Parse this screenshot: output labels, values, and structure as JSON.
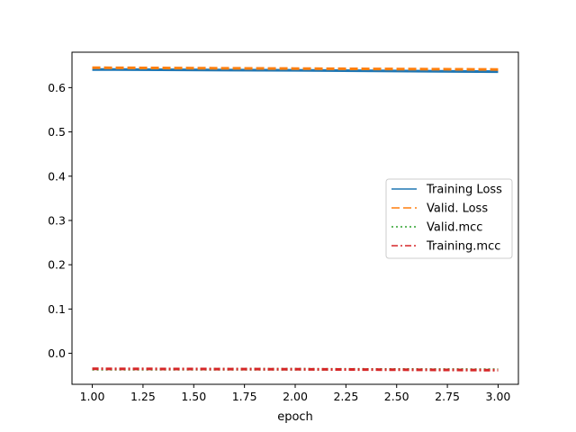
{
  "chart_data": {
    "type": "line",
    "title": "",
    "xlabel": "epoch",
    "ylabel": "",
    "xlim": [
      0.9,
      3.1
    ],
    "ylim": [
      -0.07,
      0.68
    ],
    "x_ticks": [
      "1.00",
      "1.25",
      "1.50",
      "1.75",
      "2.00",
      "2.25",
      "2.50",
      "2.75",
      "3.00"
    ],
    "x_tick_values": [
      1.0,
      1.25,
      1.5,
      1.75,
      2.0,
      2.25,
      2.5,
      2.75,
      3.0
    ],
    "y_ticks": [
      "0.0",
      "0.1",
      "0.2",
      "0.3",
      "0.4",
      "0.5",
      "0.6"
    ],
    "y_tick_values": [
      0.0,
      0.1,
      0.2,
      0.3,
      0.4,
      0.5,
      0.6
    ],
    "grid": false,
    "legend_position": "center-right",
    "x": [
      1,
      2,
      3
    ],
    "series": [
      {
        "name": "Training Loss",
        "values": [
          0.641,
          0.639,
          0.636
        ],
        "color": "#1f77b4",
        "style": "solid"
      },
      {
        "name": "Valid. Loss",
        "values": [
          0.645,
          0.643,
          0.641
        ],
        "color": "#ff7f0e",
        "style": "dashed"
      },
      {
        "name": "Valid.mcc",
        "values": [
          -0.036,
          -0.036,
          -0.037
        ],
        "color": "#2ca02c",
        "style": "dotted"
      },
      {
        "name": "Training.mcc",
        "values": [
          -0.035,
          -0.036,
          -0.038
        ],
        "color": "#d62728",
        "style": "dashdot"
      }
    ]
  }
}
